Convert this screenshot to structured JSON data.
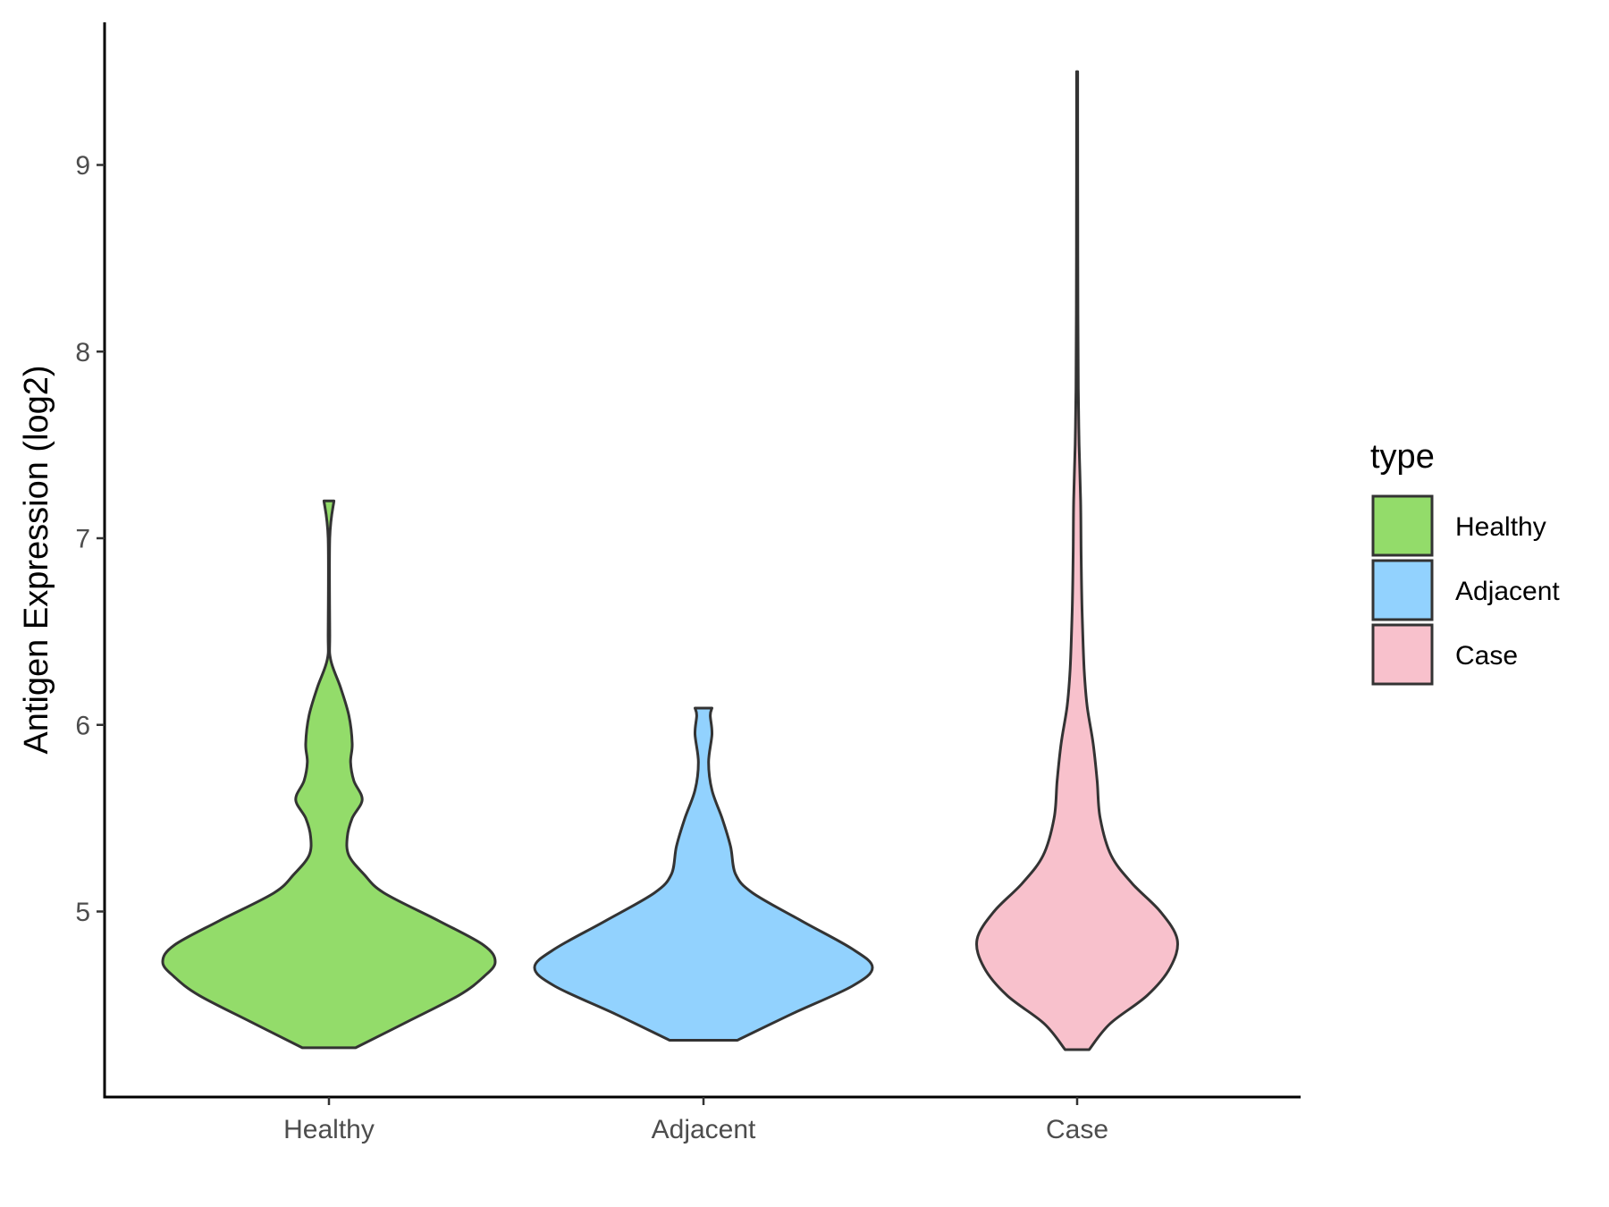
{
  "chart_data": {
    "type": "violin",
    "title": "",
    "xlabel": "",
    "ylabel": "Antigen Expression (log2)",
    "categories": [
      "Healthy",
      "Adjacent",
      "Case"
    ],
    "yticks": [
      5,
      6,
      7,
      8,
      9
    ],
    "ylim": [
      4.0,
      9.75
    ],
    "grid": false,
    "legend": {
      "title": "type",
      "placement": "right",
      "entries": [
        {
          "label": "Healthy",
          "color": "#93dc6a"
        },
        {
          "label": "Adjacent",
          "color": "#92d2fe"
        },
        {
          "label": "Case",
          "color": "#f8c1cc"
        }
      ]
    },
    "outline_color": "#333333",
    "series": [
      {
        "category": "Healthy",
        "color": "#93dc6a",
        "min": 4.27,
        "max": 7.2,
        "density_profile": [
          [
            4.27,
            0.16
          ],
          [
            4.4,
            0.45
          ],
          [
            4.55,
            0.78
          ],
          [
            4.65,
            0.93
          ],
          [
            4.73,
            1.0
          ],
          [
            4.82,
            0.93
          ],
          [
            4.95,
            0.66
          ],
          [
            5.1,
            0.33
          ],
          [
            5.2,
            0.21
          ],
          [
            5.3,
            0.12
          ],
          [
            5.4,
            0.11
          ],
          [
            5.5,
            0.14
          ],
          [
            5.6,
            0.2
          ],
          [
            5.7,
            0.15
          ],
          [
            5.8,
            0.13
          ],
          [
            5.9,
            0.14
          ],
          [
            6.05,
            0.12
          ],
          [
            6.2,
            0.07
          ],
          [
            6.35,
            0.01
          ],
          [
            6.5,
            0.005
          ],
          [
            7.0,
            0.005
          ],
          [
            7.2,
            0.03
          ]
        ]
      },
      {
        "category": "Adjacent",
        "color": "#92d2fe",
        "min": 4.31,
        "max": 6.09,
        "density_profile": [
          [
            4.31,
            0.2
          ],
          [
            4.45,
            0.52
          ],
          [
            4.6,
            0.88
          ],
          [
            4.7,
            1.0
          ],
          [
            4.8,
            0.88
          ],
          [
            4.95,
            0.58
          ],
          [
            5.1,
            0.29
          ],
          [
            5.2,
            0.19
          ],
          [
            5.35,
            0.16
          ],
          [
            5.5,
            0.11
          ],
          [
            5.65,
            0.05
          ],
          [
            5.8,
            0.03
          ],
          [
            5.95,
            0.05
          ],
          [
            6.05,
            0.04
          ],
          [
            6.09,
            0.05
          ]
        ]
      },
      {
        "category": "Case",
        "color": "#f8c1cc",
        "min": 4.26,
        "max": 9.5,
        "density_profile": [
          [
            4.26,
            0.12
          ],
          [
            4.4,
            0.33
          ],
          [
            4.55,
            0.7
          ],
          [
            4.7,
            0.93
          ],
          [
            4.85,
            1.0
          ],
          [
            5.0,
            0.83
          ],
          [
            5.15,
            0.55
          ],
          [
            5.3,
            0.34
          ],
          [
            5.5,
            0.23
          ],
          [
            5.7,
            0.2
          ],
          [
            5.9,
            0.16
          ],
          [
            6.1,
            0.1
          ],
          [
            6.3,
            0.07
          ],
          [
            6.6,
            0.05
          ],
          [
            6.9,
            0.04
          ],
          [
            7.2,
            0.035
          ],
          [
            7.5,
            0.02
          ],
          [
            7.8,
            0.012
          ],
          [
            8.2,
            0.008
          ],
          [
            8.8,
            0.006
          ],
          [
            9.3,
            0.005
          ],
          [
            9.5,
            0.005
          ]
        ]
      }
    ]
  }
}
